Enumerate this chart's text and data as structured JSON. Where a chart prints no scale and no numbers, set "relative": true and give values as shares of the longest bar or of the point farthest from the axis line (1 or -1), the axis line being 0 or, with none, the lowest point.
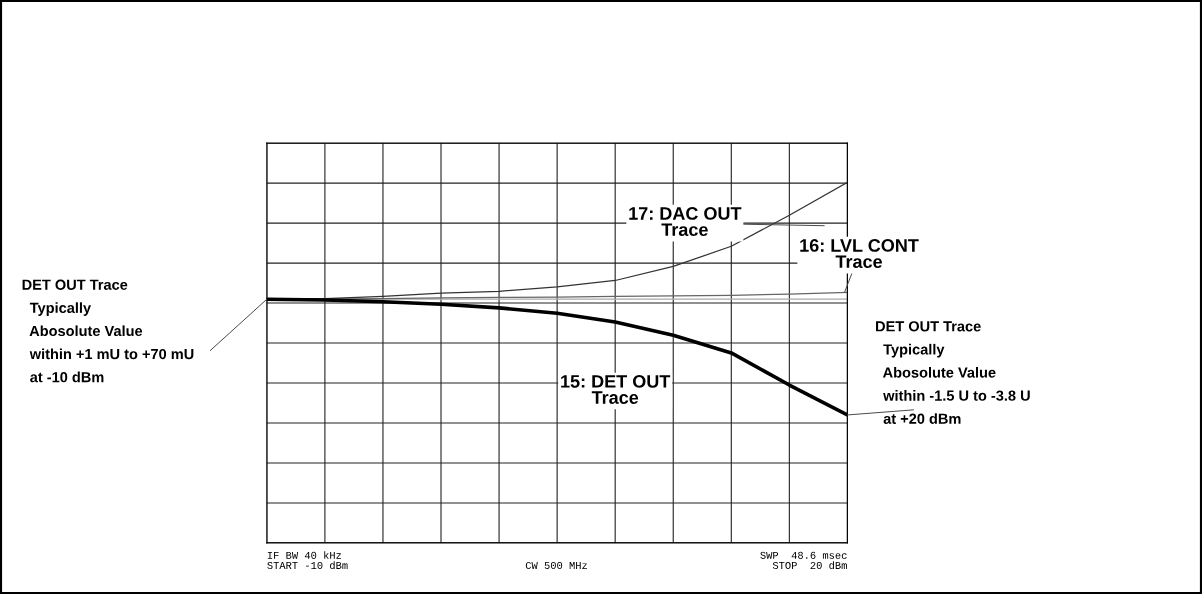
{
  "chart_data": {
    "type": "line",
    "relative": true,
    "grid": true,
    "marker": "none",
    "line_style": "solid",
    "categories": [
      null,
      null,
      null,
      null,
      null,
      null,
      null,
      null,
      null,
      null,
      null
    ],
    "series": [
      {
        "color": "#aaaaaa",
        "values": [
          0.676,
          0.676,
          0.676,
          0.676,
          0.676,
          0.676,
          0.676,
          0.676,
          0.676,
          0.676,
          0.676
        ]
      },
      {
        "name": "16: LVL CONT\nTrace",
        "color": "#666666",
        "values": [
          0.676,
          0.676,
          0.678,
          0.68,
          0.681,
          0.682,
          0.684,
          0.685,
          0.687,
          0.69,
          0.695
        ]
      },
      {
        "name": "17: DAC OUT\nTrace",
        "color": "#333333",
        "values": [
          0.676,
          0.678,
          0.684,
          0.693,
          0.698,
          0.71,
          0.728,
          0.767,
          0.823,
          0.909,
          1
        ]
      },
      {
        "name": "15: DET OUT\nTrace",
        "color": "#000000",
        "values": [
          0.676,
          0.674,
          0.669,
          0.662,
          0.652,
          0.637,
          0.613,
          0.576,
          0.527,
          0.438,
          0.355
        ]
      }
    ],
    "annotations": [
      "DET OUT Trace\n  Typically\n  Abosolute Value\n  within +1 mU to +70 mU\n  at -10 dBm",
      "DET OUT Trace\n  Typically\n  Abosolute Value\n  within -1.5 U to -3.8 U\n  at +20 dBm",
      "IF BW 40 kHz",
      "START -10 dBm",
      "CW 500 MHz",
      "SWP  48.6 msec",
      "STOP  20 dBm"
    ]
  }
}
